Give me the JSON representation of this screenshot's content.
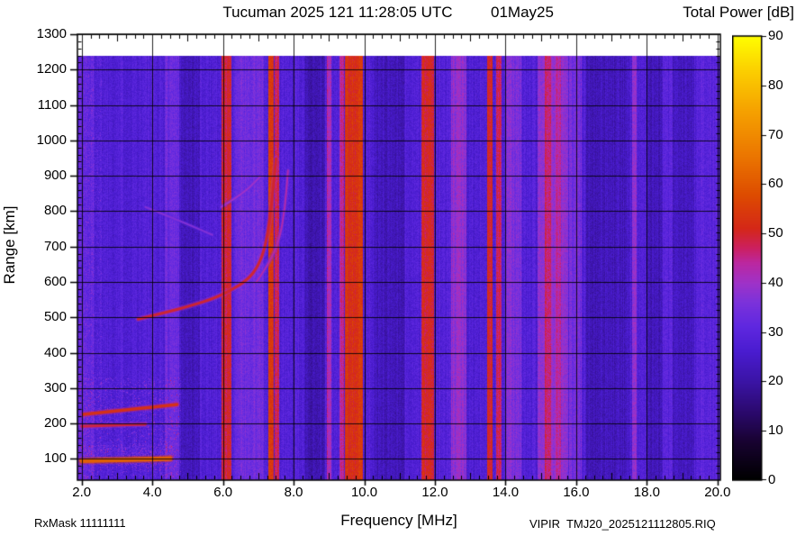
{
  "header": {
    "title": "Tucuman 2025 121 11:28:05 UTC",
    "date": "01May25",
    "colorbar_title": "Total Power [dB]"
  },
  "axes": {
    "x_label": "Frequency [MHz]",
    "y_label": "Range [km]"
  },
  "footer": {
    "rx_mask": "RxMask 11111111",
    "station_file": "VIPIR  TMJ20_2025121112805.RIQ"
  },
  "chart_data": {
    "type": "heatmap",
    "title": "Tucuman 2025 121 11:28:05 UTC",
    "subtitle": "01May25",
    "xlabel": "Frequency [MHz]",
    "ylabel": "Range [km]",
    "xlim": [
      1.88,
      20.08
    ],
    "ylim": [
      40,
      1300
    ],
    "data_top_km": 1240,
    "grid": true,
    "x_ticks": [
      2,
      4,
      6,
      8,
      10,
      12,
      14,
      16,
      18,
      20
    ],
    "x_tick_labels": [
      "2.0",
      "4.0",
      "6.0",
      "8.0",
      "10.0",
      "12.0",
      "14.0",
      "16.0",
      "18.0",
      "20.0"
    ],
    "y_ticks": [
      100,
      200,
      300,
      400,
      500,
      600,
      700,
      800,
      900,
      1000,
      1100,
      1200,
      1300
    ],
    "y_tick_labels": [
      "100",
      "200",
      "300",
      "400",
      "500",
      "600",
      "700",
      "800",
      "900",
      "1000",
      "1100",
      "1200",
      "1300"
    ],
    "colorbar": {
      "label": "Total Power [dB]",
      "min": 0,
      "max": 90,
      "ticks": [
        0,
        10,
        20,
        30,
        40,
        50,
        60,
        70,
        80,
        90
      ],
      "tick_labels": [
        "0",
        "10",
        "20",
        "30",
        "40",
        "50",
        "60",
        "70",
        "80",
        "90"
      ],
      "colormap_stops": [
        [
          0,
          "#000000"
        ],
        [
          8,
          "#190333"
        ],
        [
          14,
          "#2c0a70"
        ],
        [
          20,
          "#3b14a6"
        ],
        [
          26,
          "#4a1cd0"
        ],
        [
          31,
          "#5f28e0"
        ],
        [
          36,
          "#7c32db"
        ],
        [
          40,
          "#a032c8"
        ],
        [
          44,
          "#bc28a0"
        ],
        [
          47,
          "#cc2060"
        ],
        [
          51,
          "#d52818"
        ],
        [
          58,
          "#de4e00"
        ],
        [
          66,
          "#ec7800"
        ],
        [
          75,
          "#f6a300"
        ],
        [
          83,
          "#fcd000"
        ],
        [
          90,
          "#ffff00"
        ]
      ]
    },
    "background_db": 28,
    "column_noise_db": 5,
    "pixel_noise_db": 6,
    "rfi_bands": [
      {
        "f0": 1.88,
        "f1": 2.35,
        "db": 31
      },
      {
        "f0": 4.35,
        "f1": 4.75,
        "db": 33
      },
      {
        "f0": 4.8,
        "f1": 5.35,
        "db": 23
      },
      {
        "f0": 6.35,
        "f1": 7.15,
        "db": 34
      },
      {
        "f0": 8.3,
        "f1": 8.9,
        "db": 22
      },
      {
        "f0": 10.3,
        "f1": 11.15,
        "db": 23
      },
      {
        "f0": 12.45,
        "f1": 12.9,
        "db": 38
      },
      {
        "f0": 14.0,
        "f1": 14.45,
        "db": 36
      },
      {
        "f0": 14.9,
        "f1": 15.78,
        "db": 38
      },
      {
        "f0": 15.8,
        "f1": 16.15,
        "db": 34
      },
      {
        "f0": 16.25,
        "f1": 17.5,
        "db": 23
      },
      {
        "f0": 18.05,
        "f1": 19.35,
        "db": 23
      },
      {
        "f0": 18.45,
        "f1": 18.72,
        "db": 29
      },
      {
        "f0": 19.4,
        "f1": 20.08,
        "db": 30
      },
      {
        "f0": 5.95,
        "f1": 6.25,
        "db": 49
      },
      {
        "f0": 7.28,
        "f1": 7.44,
        "db": 53
      },
      {
        "f0": 7.47,
        "f1": 7.6,
        "db": 47
      },
      {
        "f0": 8.95,
        "f1": 9.08,
        "db": 42
      },
      {
        "f0": 9.3,
        "f1": 9.42,
        "db": 44
      },
      {
        "f0": 9.45,
        "f1": 9.97,
        "db": 53
      },
      {
        "f0": 11.62,
        "f1": 11.98,
        "db": 50
      },
      {
        "f0": 13.48,
        "f1": 13.63,
        "db": 49
      },
      {
        "f0": 13.74,
        "f1": 13.88,
        "db": 48
      },
      {
        "f0": 15.12,
        "f1": 15.3,
        "db": 46
      },
      {
        "f0": 15.42,
        "f1": 15.56,
        "db": 44
      },
      {
        "f0": 17.58,
        "f1": 17.7,
        "db": 40
      }
    ],
    "noise_patches": [
      {
        "f0": 1.88,
        "f1": 4.8,
        "km0": 45,
        "km1": 330,
        "boost_db": 11,
        "density": 0.16
      },
      {
        "f0": 1.88,
        "f1": 4.6,
        "km0": 80,
        "km1": 140,
        "boost_db": 8,
        "density": 0.5
      },
      {
        "f0": 1.88,
        "f1": 2.6,
        "km0": 40,
        "km1": 1240,
        "boost_db": 6,
        "density": 0.25
      }
    ],
    "echo_traces": [
      {
        "name": "E-region echo",
        "db": 62,
        "width": 5,
        "points": [
          [
            2.0,
            95
          ],
          [
            3.0,
            97
          ],
          [
            3.8,
            99
          ],
          [
            4.5,
            101
          ]
        ]
      },
      {
        "name": "E-region multiple",
        "db": 49,
        "width": 3,
        "points": [
          [
            2.0,
            192
          ],
          [
            2.8,
            195
          ],
          [
            3.8,
            198
          ]
        ]
      },
      {
        "name": "sporadic-E slanted echo",
        "db": 53,
        "width": 3.5,
        "points": [
          [
            2.05,
            226
          ],
          [
            3.0,
            236
          ],
          [
            4.0,
            246
          ],
          [
            4.7,
            254
          ]
        ]
      },
      {
        "name": "F-layer O-mode trace",
        "db": 50,
        "width": 3,
        "points": [
          [
            3.6,
            495
          ],
          [
            4.3,
            512
          ],
          [
            5.0,
            530
          ],
          [
            5.7,
            552
          ],
          [
            6.2,
            575
          ],
          [
            6.7,
            606
          ],
          [
            7.0,
            645
          ],
          [
            7.2,
            700
          ],
          [
            7.33,
            780
          ],
          [
            7.43,
            872
          ],
          [
            7.5,
            948
          ]
        ]
      },
      {
        "name": "F-layer X-mode trace",
        "db": 43,
        "width": 2,
        "points": [
          [
            6.95,
            600
          ],
          [
            7.3,
            652
          ],
          [
            7.6,
            718
          ],
          [
            7.76,
            812
          ],
          [
            7.84,
            915
          ]
        ]
      },
      {
        "name": "faint high multiple",
        "db": 37,
        "width": 2,
        "points": [
          [
            3.8,
            812
          ],
          [
            4.8,
            772
          ],
          [
            5.7,
            733
          ]
        ]
      },
      {
        "name": "faint F arc",
        "db": 40,
        "width": 2,
        "points": [
          [
            5.95,
            812
          ],
          [
            6.55,
            848
          ],
          [
            7.05,
            897
          ]
        ]
      }
    ]
  }
}
